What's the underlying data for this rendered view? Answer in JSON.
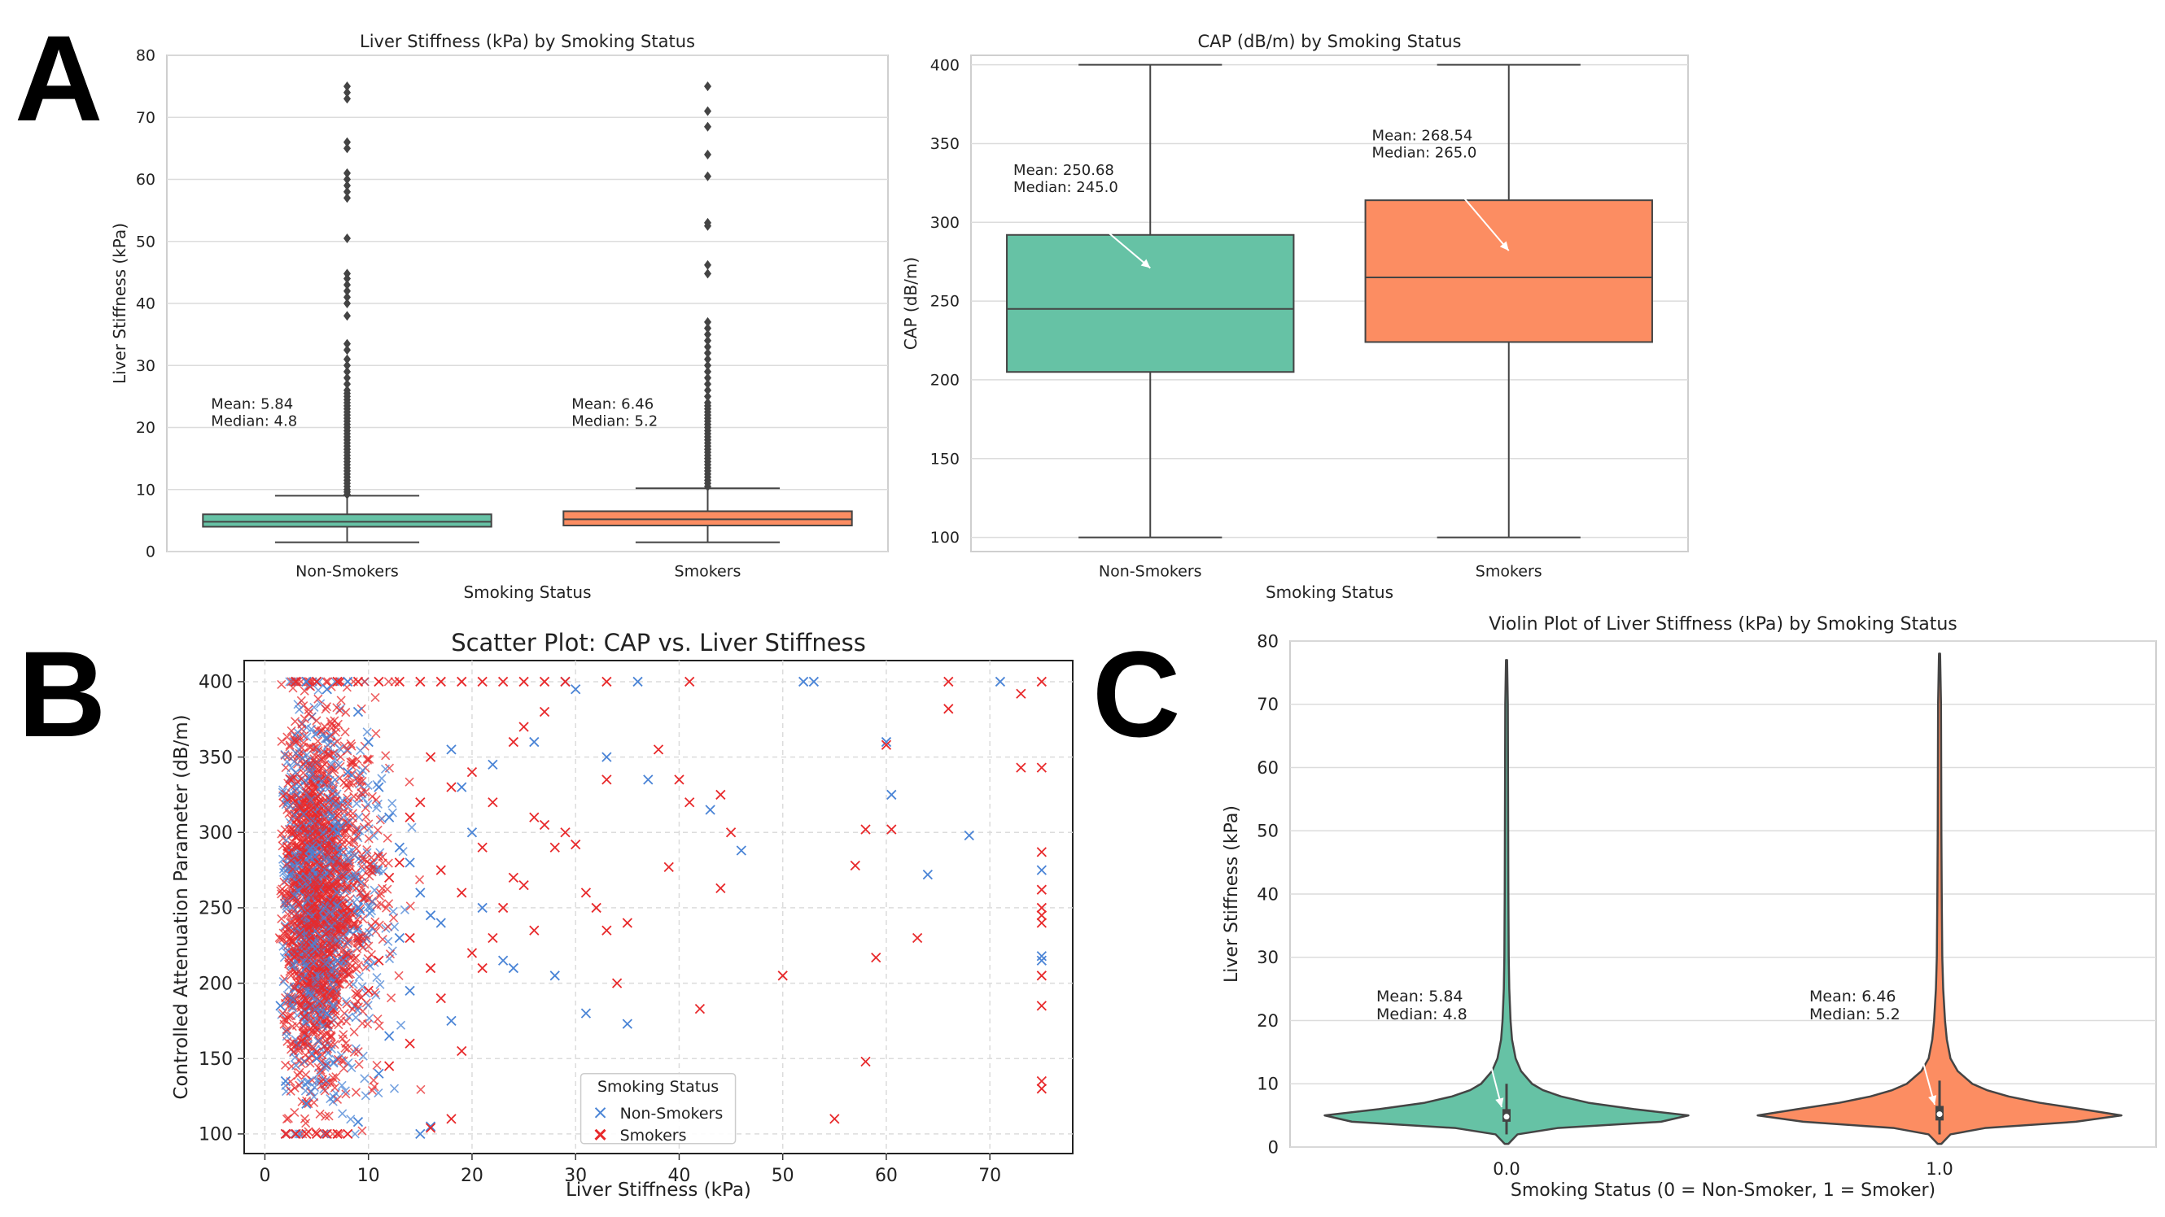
{
  "panels": {
    "a": "A",
    "b": "B",
    "c": "C"
  },
  "chart_data": [
    {
      "id": "box-ls",
      "type": "box",
      "title": "Liver Stiffness (kPa) by Smoking Status",
      "xlabel": "Smoking Status",
      "ylabel": "Liver Stiffness (kPa)",
      "ylim": [
        0,
        80
      ],
      "yticks": [
        0,
        10,
        20,
        30,
        40,
        50,
        60,
        70,
        80
      ],
      "grid": true,
      "groups": [
        {
          "label": "Non-Smokers",
          "color": "#66c2a5",
          "whisker_low": 1.5,
          "q1": 4.0,
          "median": 4.8,
          "q3": 6.0,
          "whisker_high": 9.0,
          "outliers": [
            9.2,
            9.6,
            10,
            10.5,
            11,
            11.5,
            12,
            12.5,
            13,
            13.5,
            14,
            14.5,
            15,
            15.5,
            16,
            16.5,
            17,
            17.5,
            18,
            18.5,
            19,
            19.5,
            20,
            20.5,
            21,
            21.5,
            22,
            22.5,
            23,
            23.5,
            24,
            24.5,
            25,
            25.5,
            26,
            27,
            28,
            29,
            30,
            31,
            32.5,
            33.5,
            38,
            40,
            41,
            42,
            43,
            44,
            44.8,
            50.5,
            57,
            58,
            59,
            60,
            61,
            65,
            66,
            73,
            74,
            75
          ],
          "annotation": "Mean: 5.84\nMedian: 4.8"
        },
        {
          "label": "Smokers",
          "color": "#fc8d62",
          "whisker_low": 1.5,
          "q1": 4.2,
          "median": 5.2,
          "q3": 6.5,
          "whisker_high": 10.2,
          "outliers": [
            10.5,
            11,
            11.5,
            12,
            12.5,
            13,
            13.5,
            14,
            14.5,
            15,
            15.5,
            16,
            16.5,
            17,
            17.5,
            18,
            18.5,
            19,
            19.5,
            20,
            20.5,
            21,
            21.5,
            22,
            22.5,
            23,
            23.5,
            24,
            25,
            26,
            27,
            28,
            29,
            30,
            31,
            32,
            33,
            34,
            35,
            36,
            37,
            44.8,
            46.2,
            52.5,
            53,
            60.5,
            64,
            68.5,
            71,
            75
          ],
          "annotation": "Mean: 6.46\nMedian: 5.2"
        }
      ]
    },
    {
      "id": "box-cap",
      "type": "box",
      "title": "CAP (dB/m) by Smoking Status",
      "xlabel": "Smoking Status",
      "ylabel": "CAP (dB/m)",
      "ylim": [
        91,
        406
      ],
      "yticks": [
        100,
        150,
        200,
        250,
        300,
        350,
        400
      ],
      "grid": true,
      "groups": [
        {
          "label": "Non-Smokers",
          "color": "#66c2a5",
          "whisker_low": 100,
          "q1": 205,
          "median": 245,
          "q3": 292,
          "whisker_high": 400,
          "outliers": [],
          "annotation": "Mean: 250.68\nMedian: 245.0",
          "arrow_to": 271
        },
        {
          "label": "Smokers",
          "color": "#fc8d62",
          "whisker_low": 100,
          "q1": 224,
          "median": 265,
          "q3": 314,
          "whisker_high": 400,
          "outliers": [],
          "annotation": "Mean: 268.54\nMedian: 265.0",
          "arrow_to": 282
        }
      ]
    },
    {
      "id": "scatter",
      "type": "scatter",
      "title": "Scatter Plot: CAP vs. Liver Stiffness",
      "xlabel": "Liver Stiffness (kPa)",
      "ylabel": "Controlled Attenuation Parameter (dB/m)",
      "xlim": [
        -2,
        78
      ],
      "ylim": [
        87,
        414
      ],
      "xticks": [
        0,
        10,
        20,
        30,
        40,
        50,
        60,
        70
      ],
      "yticks": [
        100,
        150,
        200,
        250,
        300,
        350,
        400
      ],
      "grid": true,
      "legend": {
        "title": "Smoking Status",
        "placement": "lower center"
      },
      "series": [
        {
          "name": "Non-Smokers",
          "color": "#4a84d6",
          "marker": "x",
          "points": [
            [
              2,
              100
            ],
            [
              1.5,
              185
            ],
            [
              2,
              135
            ],
            [
              3,
              400
            ],
            [
              4,
              400
            ],
            [
              5,
              400
            ],
            [
              6,
              395
            ],
            [
              8,
              400
            ],
            [
              9,
              380
            ],
            [
              10,
              360
            ],
            [
              11,
              330
            ],
            [
              12,
              310
            ],
            [
              13,
              290
            ],
            [
              14,
              280
            ],
            [
              15,
              260
            ],
            [
              16,
              245
            ],
            [
              17,
              240
            ],
            [
              18,
              355
            ],
            [
              19,
              330
            ],
            [
              20,
              300
            ],
            [
              21,
              250
            ],
            [
              22,
              345
            ],
            [
              23,
              215
            ],
            [
              24,
              210
            ],
            [
              26,
              360
            ],
            [
              28,
              205
            ],
            [
              29,
              400
            ],
            [
              30,
              395
            ],
            [
              31,
              180
            ],
            [
              33,
              350
            ],
            [
              35,
              173
            ],
            [
              36,
              400
            ],
            [
              37,
              335
            ],
            [
              43,
              315
            ],
            [
              46,
              288
            ],
            [
              52,
              400
            ],
            [
              53,
              400
            ],
            [
              60,
              360
            ],
            [
              60.5,
              325
            ],
            [
              64,
              272
            ],
            [
              68,
              298
            ],
            [
              71,
              400
            ],
            [
              75,
              275
            ],
            [
              75,
              218
            ],
            [
              75,
              215
            ],
            [
              15,
              100
            ],
            [
              16,
              105
            ],
            [
              18,
              175
            ],
            [
              9,
              108
            ],
            [
              12,
              165
            ],
            [
              11,
              140
            ],
            [
              14,
              195
            ],
            [
              13,
              230
            ],
            [
              7,
              215
            ],
            [
              6,
              180
            ],
            [
              5,
              150
            ],
            [
              4,
              120
            ],
            [
              7,
              300
            ],
            [
              8,
              340
            ],
            [
              9,
              250
            ]
          ]
        },
        {
          "name": "Smokers",
          "color": "#e8292b",
          "marker": "x",
          "points": [
            [
              2,
              100
            ],
            [
              3,
              100
            ],
            [
              4,
              100
            ],
            [
              5,
              100
            ],
            [
              6,
              100
            ],
            [
              7,
              100
            ],
            [
              8,
              100
            ],
            [
              3,
              400
            ],
            [
              5,
              400
            ],
            [
              7,
              400
            ],
            [
              9,
              400
            ],
            [
              11,
              400
            ],
            [
              13,
              400
            ],
            [
              15,
              400
            ],
            [
              17,
              400
            ],
            [
              19,
              400
            ],
            [
              21,
              400
            ],
            [
              23,
              400
            ],
            [
              25,
              400
            ],
            [
              27,
              400
            ],
            [
              29,
              400
            ],
            [
              33,
              400
            ],
            [
              41,
              400
            ],
            [
              66,
              400
            ],
            [
              75,
              400
            ],
            [
              16,
              104
            ],
            [
              14,
              160
            ],
            [
              12,
              145
            ],
            [
              18,
              110
            ],
            [
              19,
              155
            ],
            [
              17,
              190
            ],
            [
              21,
              210
            ],
            [
              22,
              230
            ],
            [
              23,
              250
            ],
            [
              24,
              270
            ],
            [
              25,
              265
            ],
            [
              26,
              310
            ],
            [
              28,
              290
            ],
            [
              29,
              300
            ],
            [
              30,
              292
            ],
            [
              32,
              250
            ],
            [
              33,
              235
            ],
            [
              34,
              200
            ],
            [
              33,
              335
            ],
            [
              35,
              240
            ],
            [
              38,
              355
            ],
            [
              39,
              277
            ],
            [
              40,
              335
            ],
            [
              41,
              320
            ],
            [
              42,
              183
            ],
            [
              44,
              325
            ],
            [
              44,
              263
            ],
            [
              45,
              300
            ],
            [
              50,
              205
            ],
            [
              55,
              110
            ],
            [
              58,
              148
            ],
            [
              58,
              302
            ],
            [
              59,
              217
            ],
            [
              60,
              358
            ],
            [
              60.5,
              302
            ],
            [
              57,
              278
            ],
            [
              63,
              230
            ],
            [
              66,
              382
            ],
            [
              73,
              392
            ],
            [
              73,
              343
            ],
            [
              75,
              343
            ],
            [
              75,
              287
            ],
            [
              75,
              262
            ],
            [
              75,
              250
            ],
            [
              75,
              245
            ],
            [
              75,
              240
            ],
            [
              75,
              205
            ],
            [
              75,
              185
            ],
            [
              75,
              135
            ],
            [
              75,
              130
            ],
            [
              20,
              340
            ],
            [
              21,
              290
            ],
            [
              22,
              320
            ],
            [
              20,
              220
            ],
            [
              24,
              360
            ],
            [
              25,
              370
            ],
            [
              27,
              380
            ],
            [
              31,
              260
            ],
            [
              26,
              235
            ],
            [
              27,
              305
            ],
            [
              15,
              320
            ],
            [
              16,
              350
            ],
            [
              14,
              310
            ],
            [
              13,
              280
            ],
            [
              12,
              270
            ],
            [
              11,
              215
            ],
            [
              10,
              195
            ],
            [
              9,
              230
            ],
            [
              8,
              250
            ],
            [
              17,
              275
            ],
            [
              18,
              330
            ],
            [
              19,
              260
            ],
            [
              16,
              210
            ],
            [
              14,
              230
            ]
          ]
        }
      ]
    },
    {
      "id": "violin",
      "type": "violin",
      "title": "Violin Plot of Liver Stiffness (kPa) by Smoking Status",
      "xlabel": "Smoking Status (0 = Non-Smoker, 1 = Smoker)",
      "ylabel": "Liver Stiffness (kPa)",
      "ylim": [
        0,
        80
      ],
      "yticks": [
        0,
        10,
        20,
        30,
        40,
        50,
        60,
        70,
        80
      ],
      "grid": true,
      "groups": [
        {
          "label": "0.0",
          "color": "#66c2a5",
          "min": 0.5,
          "max": 77,
          "q1": 4.0,
          "median": 4.8,
          "q3": 6.0,
          "density": [
            [
              0.5,
              0.01
            ],
            [
              2,
              0.06
            ],
            [
              3,
              0.28
            ],
            [
              4,
              0.85
            ],
            [
              5,
              1.0
            ],
            [
              6,
              0.7
            ],
            [
              7,
              0.45
            ],
            [
              8,
              0.3
            ],
            [
              9,
              0.2
            ],
            [
              10,
              0.14
            ],
            [
              12,
              0.08
            ],
            [
              14,
              0.05
            ],
            [
              17,
              0.03
            ],
            [
              20,
              0.022
            ],
            [
              25,
              0.015
            ],
            [
              30,
              0.012
            ],
            [
              40,
              0.01
            ],
            [
              50,
              0.009
            ],
            [
              60,
              0.008
            ],
            [
              70,
              0.007
            ],
            [
              77,
              0.003
            ]
          ],
          "annotation": "Mean: 5.84\nMedian: 4.8"
        },
        {
          "label": "1.0",
          "color": "#fc8d62",
          "min": 0.5,
          "max": 78,
          "q1": 4.2,
          "median": 5.2,
          "q3": 6.5,
          "density": [
            [
              0.5,
              0.01
            ],
            [
              2,
              0.06
            ],
            [
              3,
              0.25
            ],
            [
              4,
              0.75
            ],
            [
              5,
              1.0
            ],
            [
              6,
              0.78
            ],
            [
              7,
              0.55
            ],
            [
              8,
              0.38
            ],
            [
              9,
              0.26
            ],
            [
              10,
              0.18
            ],
            [
              12,
              0.1
            ],
            [
              14,
              0.06
            ],
            [
              17,
              0.04
            ],
            [
              20,
              0.03
            ],
            [
              25,
              0.02
            ],
            [
              30,
              0.015
            ],
            [
              40,
              0.012
            ],
            [
              50,
              0.01
            ],
            [
              60,
              0.009
            ],
            [
              70,
              0.008
            ],
            [
              78,
              0.003
            ]
          ],
          "annotation": "Mean: 6.46\nMedian: 5.2"
        }
      ]
    }
  ]
}
